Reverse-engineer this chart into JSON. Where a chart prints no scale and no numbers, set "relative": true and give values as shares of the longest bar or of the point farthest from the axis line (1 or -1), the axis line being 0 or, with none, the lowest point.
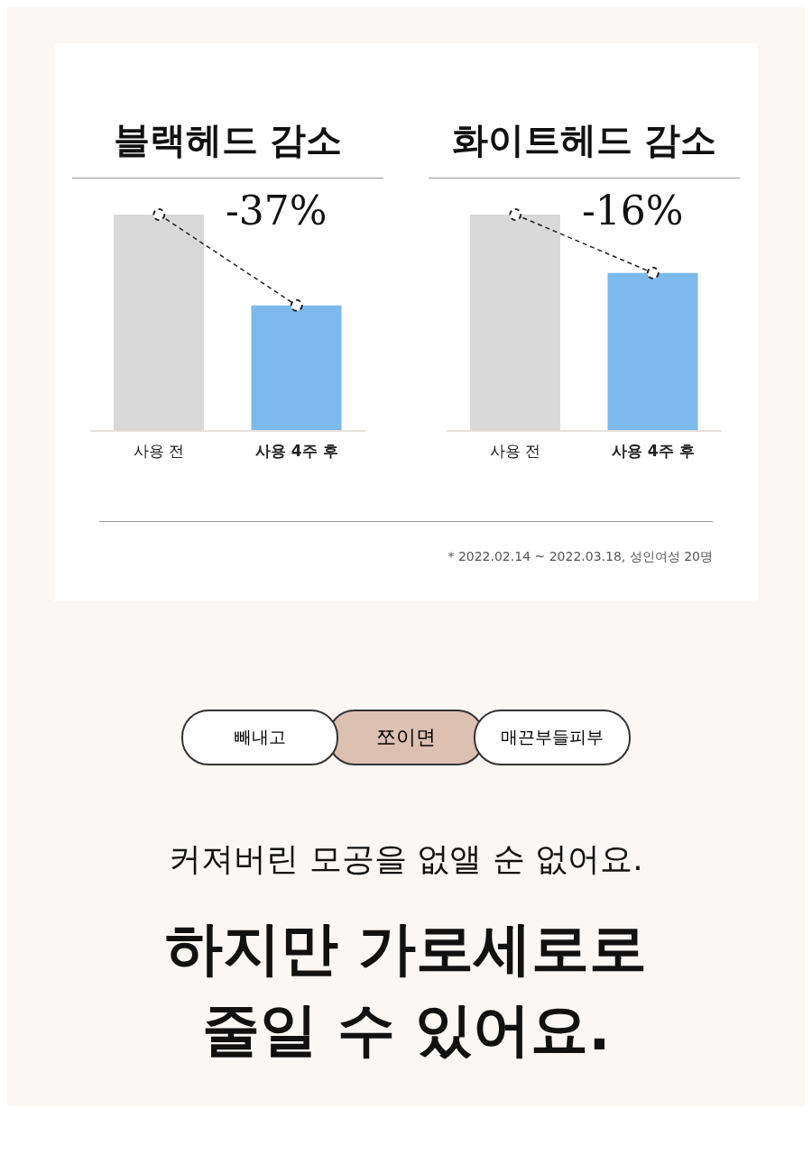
{
  "chart_data": [
    {
      "type": "bar",
      "title": "블랙헤드 감소",
      "categories": [
        "사용 전",
        "사용 4주 후"
      ],
      "relative": true,
      "annotations": [
        "-37%"
      ],
      "series": [
        {
          "type": "bar",
          "colors": [
            "#d9d9d9",
            "#7cb9ec"
          ],
          "values": [
            1,
            0.58
          ]
        },
        {
          "type": "line",
          "color": "#222222",
          "line_style": "dashed",
          "marker": "circle",
          "values": [
            1,
            0.58
          ]
        }
      ]
    },
    {
      "type": "bar",
      "title": "화이트헤드 감소",
      "categories": [
        "사용 전",
        "사용 4주 후"
      ],
      "relative": true,
      "annotations": [
        "-16%",
        "* 2022.02.14 ~ 2022.03.18, 성인여성 20명"
      ],
      "series": [
        {
          "type": "bar",
          "colors": [
            "#d9d9d9",
            "#7cb9ec"
          ],
          "values": [
            1,
            0.73
          ]
        },
        {
          "type": "line",
          "color": "#222222",
          "line_style": "dashed",
          "marker": "circle",
          "values": [
            1,
            0.73
          ]
        }
      ]
    },
    {
      "type": "other",
      "annotations": [
        "빼내고",
        "쪼이면",
        "매끈부들피부",
        "커져버린 모공을 없앨 순 없어요.",
        "하지만 가로세로로 줄일 수 있어요."
      ]
    }
  ]
}
